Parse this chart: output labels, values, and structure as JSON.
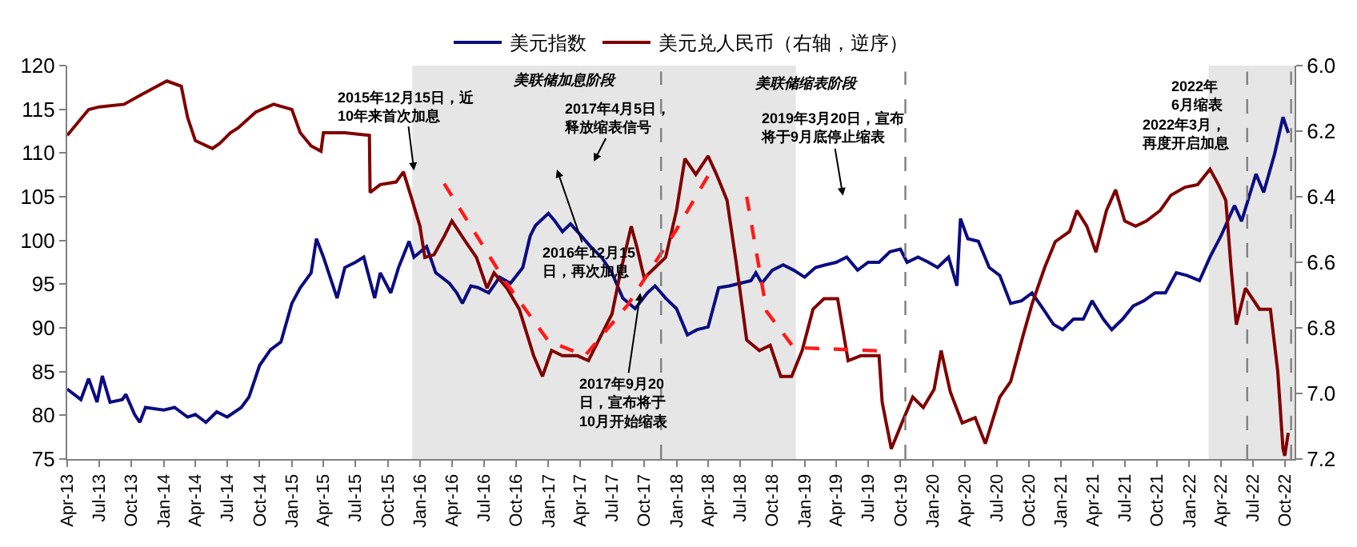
{
  "chart_data": {
    "type": "line",
    "series": [
      {
        "name": "美元指数",
        "color": "#0c0c80",
        "x": [
          "2013-04-01",
          "2013-05-10",
          "2013-06-01",
          "2013-06-25",
          "2013-07-10",
          "2013-08-01",
          "2013-09-05",
          "2013-09-15",
          "2013-10-10",
          "2013-10-25",
          "2013-11-10",
          "2014-01-01",
          "2014-02-01",
          "2014-03-10",
          "2014-04-01",
          "2014-05-01",
          "2014-06-01",
          "2014-07-01",
          "2014-08-10",
          "2014-09-01",
          "2014-10-01",
          "2014-11-01",
          "2014-12-01",
          "2015-01-01",
          "2015-01-25",
          "2015-02-25",
          "2015-03-12",
          "2015-04-01",
          "2015-05-10",
          "2015-06-01",
          "2015-07-01",
          "2015-07-25",
          "2015-08-25",
          "2015-09-10",
          "2015-10-10",
          "2015-11-01",
          "2015-12-01",
          "2015-12-15",
          "2016-01-20",
          "2016-02-15",
          "2016-03-25",
          "2016-04-15",
          "2016-05-01",
          "2016-05-25",
          "2016-06-15",
          "2016-07-15",
          "2016-08-15",
          "2016-09-15",
          "2016-10-20",
          "2016-11-10",
          "2016-11-25",
          "2017-01-01",
          "2017-01-20",
          "2017-02-10",
          "2017-03-05",
          "2017-04-05",
          "2017-05-01",
          "2017-06-01",
          "2017-07-01",
          "2017-08-01",
          "2017-09-05",
          "2017-10-10",
          "2017-11-01",
          "2017-12-01",
          "2018-01-01",
          "2018-02-01",
          "2018-03-01",
          "2018-04-01",
          "2018-05-01",
          "2018-06-01",
          "2018-07-01",
          "2018-08-01",
          "2018-08-15",
          "2018-09-01",
          "2018-10-01",
          "2018-11-01",
          "2018-12-01",
          "2019-01-01",
          "2019-02-01",
          "2019-03-01",
          "2019-04-01",
          "2019-05-01",
          "2019-06-01",
          "2019-07-01",
          "2019-08-01",
          "2019-09-01",
          "2019-10-01",
          "2019-10-20",
          "2019-11-20",
          "2019-12-20",
          "2020-01-15",
          "2020-02-15",
          "2020-03-10",
          "2020-03-20",
          "2020-04-10",
          "2020-05-10",
          "2020-06-10",
          "2020-07-10",
          "2020-08-10",
          "2020-09-10",
          "2020-10-10",
          "2020-11-10",
          "2020-12-10",
          "2021-01-05",
          "2021-02-05",
          "2021-03-05",
          "2021-03-30",
          "2021-05-01",
          "2021-05-25",
          "2021-06-25",
          "2021-07-25",
          "2021-08-25",
          "2021-09-25",
          "2021-10-25",
          "2021-11-25",
          "2021-12-25",
          "2022-01-30",
          "2022-03-01",
          "2022-04-01",
          "2022-05-10",
          "2022-05-30",
          "2022-07-10",
          "2022-08-01",
          "2022-09-01",
          "2022-09-25",
          "2022-10-10"
        ],
        "values": [
          83.0,
          81.8,
          84.2,
          81.5,
          84.5,
          81.5,
          81.8,
          82.4,
          80.1,
          79.2,
          80.9,
          80.6,
          80.9,
          79.8,
          80.1,
          79.2,
          80.4,
          79.8,
          80.9,
          82.1,
          85.7,
          87.5,
          88.4,
          92.8,
          94.6,
          96.3,
          100.2,
          98.1,
          93.4,
          96.9,
          97.5,
          98.1,
          93.4,
          96.3,
          94.0,
          96.9,
          99.9,
          98.1,
          99.3,
          96.3,
          95.1,
          94.0,
          92.8,
          94.8,
          94.6,
          94.0,
          95.8,
          95.1,
          96.9,
          100.5,
          101.7,
          103.1,
          102.2,
          101.0,
          101.9,
          100.5,
          99.3,
          98.1,
          96.3,
          93.4,
          92.2,
          94.0,
          94.8,
          93.4,
          92.2,
          89.2,
          89.8,
          90.1,
          94.6,
          94.8,
          95.1,
          95.4,
          96.3,
          95.1,
          96.6,
          97.2,
          96.6,
          95.8,
          96.9,
          97.2,
          97.5,
          98.1,
          96.6,
          97.5,
          97.5,
          98.7,
          99.0,
          97.5,
          98.1,
          97.5,
          96.9,
          98.1,
          94.8,
          102.5,
          100.2,
          99.9,
          96.9,
          96.0,
          92.8,
          93.1,
          94.0,
          92.2,
          90.4,
          89.8,
          91.0,
          91.0,
          93.1,
          91.0,
          89.8,
          91.0,
          92.5,
          93.1,
          94.0,
          94.0,
          96.3,
          96.0,
          95.4,
          98.1,
          100.5,
          104.0,
          102.2,
          107.6,
          105.5,
          109.9,
          114.1,
          112.3
        ]
      },
      {
        "name": "美元兑人民币（右轴，逆序）",
        "color": "#800000",
        "axis": "y2",
        "x": [
          "2013-04-01",
          "2013-06-01",
          "2013-07-01",
          "2013-09-10",
          "2013-11-01",
          "2014-01-10",
          "2014-02-20",
          "2014-03-10",
          "2014-04-01",
          "2014-05-20",
          "2014-06-10",
          "2014-07-10",
          "2014-08-01",
          "2014-09-20",
          "2014-11-10",
          "2015-01-01",
          "2015-01-25",
          "2015-02-25",
          "2015-03-25",
          "2015-04-01",
          "2015-06-01",
          "2015-08-10",
          "2015-08-12",
          "2015-09-10",
          "2015-10-25",
          "2015-11-15",
          "2015-12-10",
          "2016-01-01",
          "2016-01-15",
          "2016-02-10",
          "2016-03-10",
          "2016-04-01",
          "2016-05-10",
          "2016-06-10",
          "2016-07-10",
          "2016-07-30",
          "2016-09-05",
          "2016-10-10",
          "2016-11-20",
          "2016-12-15",
          "2017-01-10",
          "2017-02-10",
          "2017-03-25",
          "2017-04-25",
          "2017-06-01",
          "2017-07-01",
          "2017-07-25",
          "2017-08-25",
          "2017-09-10",
          "2017-10-01",
          "2017-11-01",
          "2017-12-01",
          "2018-01-01",
          "2018-01-25",
          "2018-02-25",
          "2018-04-01",
          "2018-04-25",
          "2018-05-25",
          "2018-06-20",
          "2018-07-20",
          "2018-08-25",
          "2018-09-25",
          "2018-10-25",
          "2018-11-25",
          "2018-12-25",
          "2019-01-25",
          "2019-02-25",
          "2019-04-05",
          "2019-05-05",
          "2019-06-10",
          "2019-07-10",
          "2019-08-01",
          "2019-08-10",
          "2019-09-05",
          "2019-10-05",
          "2019-11-05",
          "2019-12-05",
          "2020-01-05",
          "2020-01-25",
          "2020-02-20",
          "2020-03-25",
          "2020-05-01",
          "2020-05-30",
          "2020-07-10",
          "2020-08-10",
          "2020-09-15",
          "2020-10-10",
          "2020-11-15",
          "2020-12-15",
          "2021-01-25",
          "2021-02-15",
          "2021-03-15",
          "2021-04-10",
          "2021-05-10",
          "2021-06-05",
          "2021-07-01",
          "2021-08-01",
          "2021-09-01",
          "2021-10-10",
          "2021-11-10",
          "2021-12-20",
          "2022-01-25",
          "2022-03-01",
          "2022-03-25",
          "2022-04-15",
          "2022-04-30",
          "2022-05-15",
          "2022-06-10",
          "2022-07-20",
          "2022-08-20",
          "2022-09-10",
          "2022-09-25",
          "2022-09-30",
          "2022-10-10"
        ],
        "values": [
          6.213,
          6.134,
          6.126,
          6.118,
          6.087,
          6.047,
          6.063,
          6.158,
          6.229,
          6.253,
          6.237,
          6.205,
          6.19,
          6.142,
          6.118,
          6.134,
          6.205,
          6.245,
          6.261,
          6.205,
          6.205,
          6.213,
          6.387,
          6.363,
          6.355,
          6.324,
          6.411,
          6.49,
          6.585,
          6.577,
          6.521,
          6.474,
          6.537,
          6.585,
          6.679,
          6.632,
          6.679,
          6.743,
          6.885,
          6.948,
          6.869,
          6.885,
          6.885,
          6.9,
          6.821,
          6.758,
          6.632,
          6.49,
          6.553,
          6.648,
          6.616,
          6.585,
          6.442,
          6.284,
          6.332,
          6.276,
          6.332,
          6.411,
          6.6,
          6.837,
          6.869,
          6.853,
          6.948,
          6.948,
          6.869,
          6.743,
          6.711,
          6.711,
          6.9,
          6.885,
          6.885,
          6.885,
          7.027,
          7.169,
          7.09,
          7.011,
          7.043,
          6.987,
          6.869,
          6.995,
          7.09,
          7.074,
          7.153,
          7.011,
          6.964,
          6.821,
          6.727,
          6.616,
          6.537,
          6.506,
          6.442,
          6.49,
          6.569,
          6.442,
          6.379,
          6.474,
          6.49,
          6.474,
          6.442,
          6.395,
          6.371,
          6.363,
          6.316,
          6.363,
          6.411,
          6.616,
          6.79,
          6.679,
          6.743,
          6.743,
          6.932,
          7.169,
          7.19,
          7.12
        ]
      },
      {
        "color": "#ff1a1a",
        "axis": "y2",
        "line_style": "dashed",
        "x": [
          "2016-03-10",
          "2016-09-01",
          "2017-01-01",
          "2017-04-15",
          "2017-08-15",
          "2018-01-01",
          "2018-04-10"
        ],
        "values": [
          6.36,
          6.66,
          6.84,
          6.885,
          6.73,
          6.5,
          6.32
        ]
      },
      {
        "color": "#ff1a1a",
        "axis": "y2",
        "line_style": "dashed",
        "x": [
          "2018-07-20",
          "2018-09-15",
          "2018-12-01",
          "2019-08-01"
        ],
        "values": [
          6.4,
          6.75,
          6.86,
          6.87
        ]
      }
    ],
    "xlim": [
      "2013-04-01",
      "2022-10-28"
    ],
    "xticks": [
      {
        "value": "2013-04-01",
        "label": "Apr-13"
      },
      {
        "value": "2013-07-01",
        "label": "Jul-13"
      },
      {
        "value": "2013-10-01",
        "label": "Oct-13"
      },
      {
        "value": "2014-01-01",
        "label": "Jan-14"
      },
      {
        "value": "2014-04-01",
        "label": "Apr-14"
      },
      {
        "value": "2014-07-01",
        "label": "Jul-14"
      },
      {
        "value": "2014-10-01",
        "label": "Oct-14"
      },
      {
        "value": "2015-01-01",
        "label": "Jan-15"
      },
      {
        "value": "2015-04-01",
        "label": "Apr-15"
      },
      {
        "value": "2015-07-01",
        "label": "Jul-15"
      },
      {
        "value": "2015-10-01",
        "label": "Oct-15"
      },
      {
        "value": "2016-01-01",
        "label": "Jan-16"
      },
      {
        "value": "2016-04-01",
        "label": "Apr-16"
      },
      {
        "value": "2016-07-01",
        "label": "Jul-16"
      },
      {
        "value": "2016-10-01",
        "label": "Oct-16"
      },
      {
        "value": "2017-01-01",
        "label": "Jan-17"
      },
      {
        "value": "2017-04-01",
        "label": "Apr-17"
      },
      {
        "value": "2017-07-01",
        "label": "Jul-17"
      },
      {
        "value": "2017-10-01",
        "label": "Oct-17"
      },
      {
        "value": "2018-01-01",
        "label": "Jan-18"
      },
      {
        "value": "2018-04-01",
        "label": "Apr-18"
      },
      {
        "value": "2018-07-01",
        "label": "Jul-18"
      },
      {
        "value": "2018-10-01",
        "label": "Oct-18"
      },
      {
        "value": "2019-01-01",
        "label": "Jan-19"
      },
      {
        "value": "2019-04-01",
        "label": "Apr-19"
      },
      {
        "value": "2019-07-01",
        "label": "Jul-19"
      },
      {
        "value": "2019-10-01",
        "label": "Oct-19"
      },
      {
        "value": "2020-01-01",
        "label": "Jan-20"
      },
      {
        "value": "2020-04-01",
        "label": "Apr-20"
      },
      {
        "value": "2020-07-01",
        "label": "Jul-20"
      },
      {
        "value": "2020-10-01",
        "label": "Oct-20"
      },
      {
        "value": "2021-01-01",
        "label": "Jan-21"
      },
      {
        "value": "2021-04-01",
        "label": "Apr-21"
      },
      {
        "value": "2021-07-01",
        "label": "Jul-21"
      },
      {
        "value": "2021-10-01",
        "label": "Oct-21"
      },
      {
        "value": "2022-01-01",
        "label": "Jan-22"
      },
      {
        "value": "2022-04-01",
        "label": "Apr-22"
      },
      {
        "value": "2022-07-01",
        "label": "Jul-22"
      },
      {
        "value": "2022-10-01",
        "label": "Oct-22"
      }
    ],
    "ylim": [
      75,
      120
    ],
    "yticks": [
      75,
      80,
      85,
      90,
      95,
      100,
      105,
      110,
      115,
      120
    ],
    "y2lim": [
      7.2,
      6.0
    ],
    "y2ticks": [
      {
        "value": 6.0,
        "label": "6.0"
      },
      {
        "value": 6.2,
        "label": "6.2"
      },
      {
        "value": 6.4,
        "label": "6.4"
      },
      {
        "value": 6.6,
        "label": "6.6"
      },
      {
        "value": 6.8,
        "label": "6.8"
      },
      {
        "value": 7.0,
        "label": "7.0"
      },
      {
        "value": 7.2,
        "label": "7.2"
      }
    ],
    "bands": [
      {
        "axis": "x",
        "from": "2015-12-10",
        "to": "2018-12-07",
        "label": "美联储加息阶段",
        "color": "#e6e6e6"
      },
      {
        "axis": "x",
        "from": "2022-02-25",
        "to": "2022-10-28",
        "color": "#e6e6e6"
      }
    ],
    "ref_lines": [
      {
        "axis": "x",
        "value": "2017-11-18",
        "color": "#808080",
        "line_style": "dashed"
      },
      {
        "axis": "x",
        "value": "2019-10-15",
        "color": "#808080",
        "line_style": "dashed"
      },
      {
        "axis": "x",
        "value": "2022-06-15",
        "color": "#808080",
        "line_style": "dashed"
      },
      {
        "axis": "x",
        "value": "2022-10-18",
        "color": "#808080",
        "line_style": "dashed"
      }
    ],
    "annotations": [
      {
        "text": "2015年12月15日，近10年来首次加息",
        "x": "2015-12-15",
        "y": 108
      },
      "2016年12月15日，再次加息",
      "2017年4月5日，释放缩表信号",
      {
        "text": "2017年9月20日，宣布将于10月开始缩表",
        "x": "2017-09-20",
        "y": 94
      },
      "2019年3月20日，宣布将于9月底停止缩表",
      {
        "text": "2022年3月，再度开启加息",
        "x": "2022-03-16",
        "y": 111
      },
      "2022年6月缩表",
      "美联储缩表阶段"
    ],
    "legend": "top",
    "grid": false,
    "marker": "none"
  }
}
